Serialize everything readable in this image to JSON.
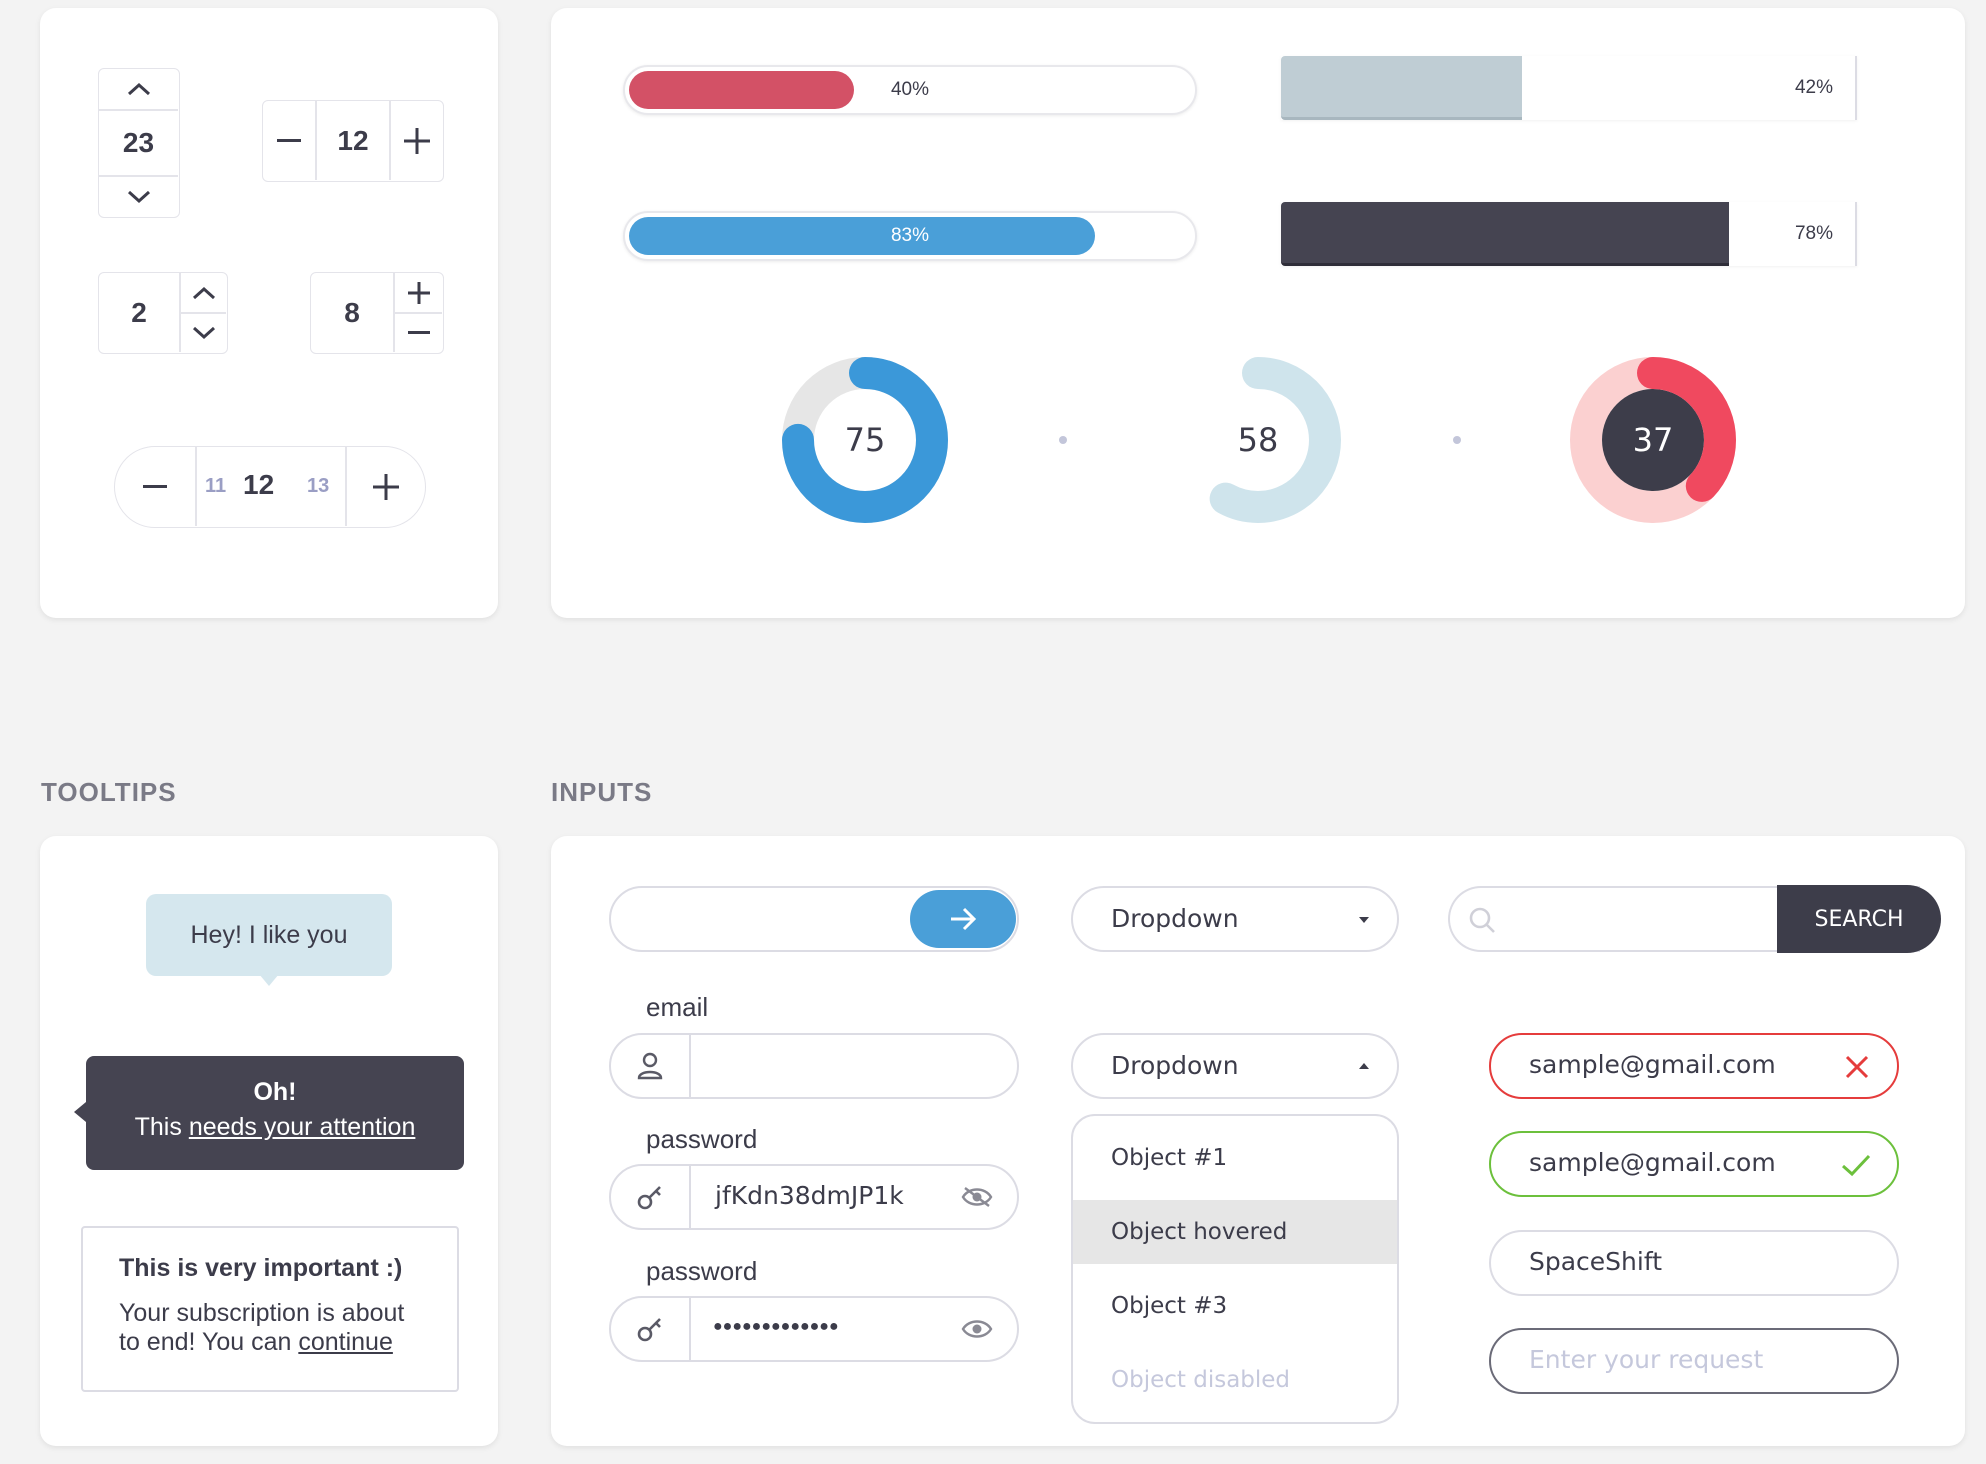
{
  "steppers": {
    "vertical": {
      "value": "23"
    },
    "horizontal": {
      "value": "12"
    },
    "side_arrows": {
      "value": "2"
    },
    "side_plusminus": {
      "value": "8"
    },
    "carousel": {
      "prev": "11",
      "value": "12",
      "next": "13"
    }
  },
  "progress": {
    "red": {
      "label": "40%",
      "value": 0.4,
      "color": "#d35166"
    },
    "blue": {
      "label": "83%",
      "value": 0.83,
      "color": "#4a9fd8"
    },
    "grey": {
      "label": "42%",
      "value": 0.42,
      "color": "#bfcdd4"
    },
    "dark": {
      "label": "78%",
      "value": 0.78,
      "color": "#454451"
    }
  },
  "donuts": {
    "blue": {
      "label": "75",
      "value": 0.75,
      "color": "#3b98d9",
      "track": "#e6e6e6"
    },
    "light": {
      "label": "58",
      "value": 0.58,
      "color": "#cfe4ec"
    },
    "red": {
      "label": "37",
      "value": 0.37,
      "color": "#f0495f",
      "track": "#fbd0d0",
      "center": "#3d3d4a"
    }
  },
  "sections": {
    "tooltips": "TOOLTIPS",
    "inputs": "INPUTS"
  },
  "tooltips": {
    "light": "Hey! I like you",
    "dark_title": "Oh!",
    "dark_prefix": "This ",
    "dark_link": "needs your attention",
    "outline_title": "This is very important :)",
    "outline_body_1": "Your subscription is about",
    "outline_body_2": "to end! You can ",
    "outline_link": "continue"
  },
  "inputs": {
    "email_label": "email",
    "password_label": "password",
    "password_visible_value": "jfKdn38dmJP1k",
    "password_hidden_value": "●●●●●●●●●●●●●",
    "dropdown_label": "Dropdown",
    "dropdown_open_label": "Dropdown",
    "dropdown_items": [
      "Object #1",
      "Object hovered",
      "Object #3",
      "Object disabled"
    ],
    "search_button": "SEARCH",
    "error_value": "sample@gmail.com",
    "success_value": "sample@gmail.com",
    "plain_value": "SpaceShift",
    "request_placeholder": "Enter your request"
  },
  "colors": {
    "error": "#e53c3c",
    "success": "#6cc03c",
    "accent_blue": "#4a9fd8",
    "dark": "#3d3d4a"
  }
}
